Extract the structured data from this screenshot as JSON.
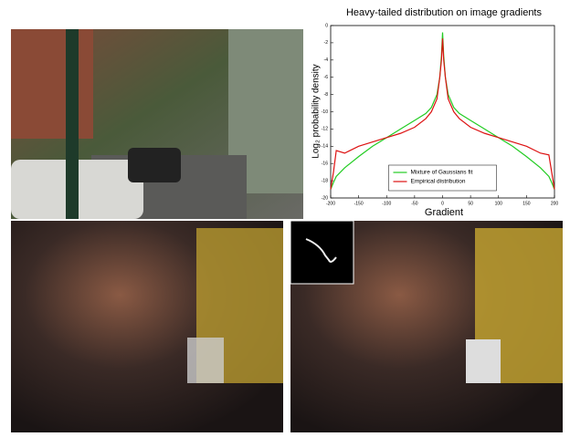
{
  "chart_data": {
    "type": "line",
    "title": "Heavy-tailed distribution on image gradients",
    "x_label": "Gradient",
    "y_label": "Log₂ probability density",
    "x": [
      -200,
      -195,
      -190,
      -175,
      -150,
      -125,
      -100,
      -75,
      -50,
      -30,
      -20,
      -10,
      -5,
      -2,
      0,
      2,
      5,
      10,
      20,
      30,
      50,
      75,
      100,
      125,
      150,
      175,
      190,
      195,
      200
    ],
    "series": [
      {
        "name": "Mixture of Gaussians fit",
        "color": "#22cc22",
        "values": [
          -19,
          -18.2,
          -17.5,
          -16.5,
          -15.2,
          -14,
          -13,
          -12,
          -11,
          -10.2,
          -9.5,
          -8,
          -6,
          -3.5,
          -0.8,
          -3.5,
          -6,
          -8,
          -9.5,
          -10.2,
          -11,
          -12,
          -13,
          -14,
          -15.2,
          -16.5,
          -17.5,
          -18.2,
          -19
        ]
      },
      {
        "name": "Empirical distribution",
        "color": "#dd1111",
        "values": [
          -19,
          -17,
          -14.5,
          -14.8,
          -14,
          -13.5,
          -13,
          -12.5,
          -11.8,
          -10.8,
          -10,
          -8.5,
          -6,
          -4,
          -1.5,
          -4,
          -6,
          -8.5,
          -10,
          -10.8,
          -11.8,
          -12.5,
          -13,
          -13.5,
          -14,
          -14.8,
          -15,
          -17,
          -19
        ]
      }
    ],
    "xlim": [
      -200,
      200
    ],
    "xticks": [
      -200,
      -150,
      -100,
      -50,
      0,
      50,
      100,
      150,
      200
    ],
    "ylim": [
      -20,
      0
    ],
    "yticks": [
      -20,
      -18,
      -16,
      -14,
      -12,
      -10,
      -8,
      -6,
      -4,
      -2,
      0
    ],
    "legend": "lower center"
  }
}
